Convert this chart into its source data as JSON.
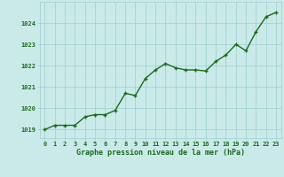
{
  "x": [
    0,
    1,
    2,
    3,
    4,
    5,
    6,
    7,
    8,
    9,
    10,
    11,
    12,
    13,
    14,
    15,
    16,
    17,
    18,
    19,
    20,
    21,
    22,
    23
  ],
  "y": [
    1019.0,
    1019.2,
    1019.2,
    1019.2,
    1019.6,
    1019.7,
    1019.7,
    1019.9,
    1020.7,
    1020.6,
    1021.4,
    1021.8,
    1022.1,
    1021.9,
    1021.8,
    1021.8,
    1021.75,
    1022.2,
    1022.5,
    1023.0,
    1022.7,
    1023.6,
    1024.3,
    1024.5
  ],
  "line_color": "#1a6b1a",
  "marker_color": "#1a6b1a",
  "bg_color": "#caeaea",
  "grid_color": "#9dcece",
  "xlabel": "Graphe pression niveau de la mer (hPa)",
  "xlabel_color": "#1a6b1a",
  "tick_color": "#1a6b1a",
  "ylim": [
    1018.6,
    1025.0
  ],
  "xlim": [
    -0.5,
    23.5
  ],
  "yticks": [
    1019,
    1020,
    1021,
    1022,
    1023,
    1024
  ],
  "xticks": [
    0,
    1,
    2,
    3,
    4,
    5,
    6,
    7,
    8,
    9,
    10,
    11,
    12,
    13,
    14,
    15,
    16,
    17,
    18,
    19,
    20,
    21,
    22,
    23
  ],
  "marker_size": 3.5,
  "line_width": 1.0,
  "tick_fontsize": 5.0,
  "xlabel_fontsize": 6.0
}
